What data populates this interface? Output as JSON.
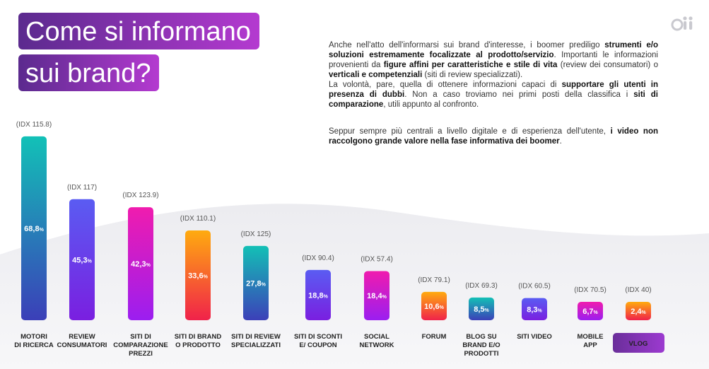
{
  "title_line1": "Come si informano",
  "title_line2": "sui brand?",
  "logo_text": "oii",
  "paragraph1": [
    {
      "t": "Anche nell'atto dell'informarsi sui brand d'interesse, i boomer prediligo ",
      "b": false
    },
    {
      "t": "strumenti e/o soluzioni estremamente focalizzate al prodotto/servizio",
      "b": true
    },
    {
      "t": ". Importanti le informazioni provenienti da ",
      "b": false
    },
    {
      "t": "figure affini per caratteristiche e stile di vita",
      "b": true
    },
    {
      "t": " (review dei consumatori) o ",
      "b": false
    },
    {
      "t": "verticali e competenziali",
      "b": true
    },
    {
      "t": " (siti di review specializzati).",
      "b": false
    },
    {
      "br": true
    },
    {
      "t": "La volontà, pare, quella di ottenere informazioni capaci di ",
      "b": false
    },
    {
      "t": "supportare gli utenti in presenza di dubbi",
      "b": true
    },
    {
      "t": ". Non a caso troviamo nei primi posti della classifica i ",
      "b": false
    },
    {
      "t": "siti di comparazione",
      "b": true
    },
    {
      "t": ", utili appunto al confronto.",
      "b": false
    }
  ],
  "paragraph2": [
    {
      "t": "Seppur sempre più centrali a livello digitale e di esperienza dell'utente, ",
      "b": false
    },
    {
      "t": "i video non raccolgono grande valore nella fase informativa dei boomer",
      "b": true
    },
    {
      "t": ".",
      "b": false
    }
  ],
  "chart_data": {
    "type": "bar",
    "categories": [
      [
        "MOTORI",
        "DI RICERCA"
      ],
      [
        "REVIEW",
        "CONSUMATORI"
      ],
      [
        "SITI DI",
        "COMPARAZIONE",
        "PREZZI"
      ],
      [
        "SITI DI BRAND",
        "O PRODOTTO"
      ],
      [
        "SITI DI REVIEW",
        "SPECIALIZZATI"
      ],
      [
        "SITI DI SCONTI",
        "E/ COUPON"
      ],
      [
        "SOCIAL",
        "NETWORK"
      ],
      [
        "FORUM"
      ],
      [
        "BLOG SU",
        "BRAND E/O",
        "PRODOTTI"
      ],
      [
        "SITI VIDEO"
      ],
      [
        "MOBILE",
        "APP"
      ],
      [
        "VLOG"
      ]
    ],
    "values": [
      68.8,
      45.3,
      42.3,
      33.6,
      27.8,
      18.8,
      18.4,
      10.6,
      8.5,
      8.3,
      6.7,
      2.4
    ],
    "value_labels": [
      "68,8",
      "45,3",
      "42,3",
      "33,6",
      "27,8",
      "18,8",
      "18,4",
      "10,6",
      "8,5",
      "8,3",
      "6,7",
      "2,4"
    ],
    "value_suffix": "%",
    "idx_labels": [
      "(IDX 115.8)",
      "(IDX 117)",
      "(IDX 123.9)",
      "(IDX 110.1)",
      "(IDX 125)",
      "(IDX 90.4)",
      "(IDX 57.4)",
      "(IDX 79.1)",
      "(IDX 69.3)",
      "(IDX 60.5)",
      "(IDX 70.5)",
      "(IDX 40)"
    ],
    "highlighted_category": "VLOG",
    "bar_gradients": [
      [
        "#12c1b7",
        "#3b3fb8"
      ],
      [
        "#5a5cf2",
        "#7a1fe0"
      ],
      [
        "#f01cae",
        "#9b1ef0"
      ],
      [
        "#ffab0f",
        "#f0224a"
      ],
      [
        "#13c0b6",
        "#3c40b8"
      ],
      [
        "#5a5cf2",
        "#7a1fe0"
      ],
      [
        "#f01cae",
        "#9b1ef0"
      ],
      [
        "#ffab0f",
        "#f0224a"
      ],
      [
        "#13c0b6",
        "#3c40b8"
      ],
      [
        "#5a5cf2",
        "#7a1fe0"
      ],
      [
        "#f01cae",
        "#9b1ef0"
      ],
      [
        "#ffab0f",
        "#f0224a"
      ]
    ],
    "title": "",
    "xlabel": "",
    "ylabel": ""
  }
}
